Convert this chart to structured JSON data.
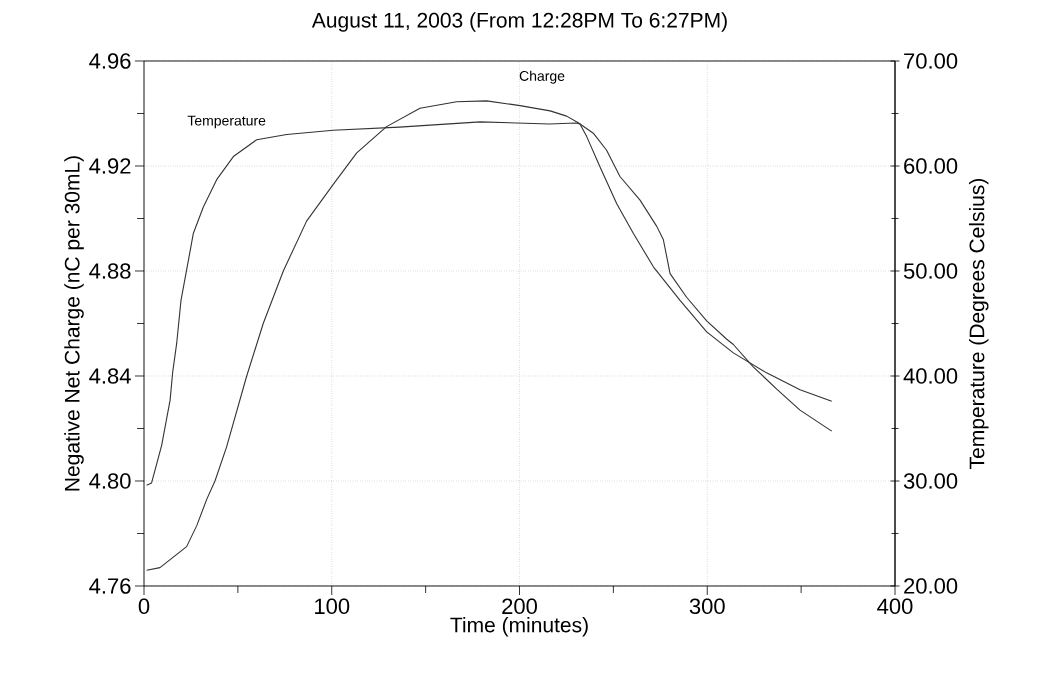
{
  "chart_data": {
    "type": "line",
    "title": "August 11, 2003 (From 12:28PM To 6:27PM)",
    "xlabel": "Time (minutes)",
    "ylabel": "Negative Net Charge (nC per 30mL)",
    "y2label": "Temperature (Degrees Celsius)",
    "xlim": [
      0,
      400
    ],
    "xticks": [
      0,
      {
        "value": 50,
        "label": null
      },
      100,
      {
        "value": 150,
        "label": null
      },
      200,
      {
        "value": 250,
        "label": null
      },
      300,
      {
        "value": 350,
        "label": null
      },
      400
    ],
    "ylim": [
      4.76,
      4.96
    ],
    "yticks": [
      {
        "value": 4.76,
        "label": "4.76"
      },
      {
        "value": 4.78,
        "label": null
      },
      {
        "value": 4.8,
        "label": "4.80"
      },
      {
        "value": 4.82,
        "label": null
      },
      {
        "value": 4.84,
        "label": "4.84"
      },
      {
        "value": 4.86,
        "label": null
      },
      {
        "value": 4.88,
        "label": "4.88"
      },
      {
        "value": 4.9,
        "label": null
      },
      {
        "value": 4.92,
        "label": "4.92"
      },
      {
        "value": 4.94,
        "label": null
      },
      {
        "value": 4.96,
        "label": "4.96"
      }
    ],
    "y2lim": [
      20,
      70
    ],
    "y2ticks": [
      {
        "value": 20,
        "label": "20.00"
      },
      {
        "value": 25,
        "label": null
      },
      {
        "value": 30,
        "label": "30.00"
      },
      {
        "value": 35,
        "label": null
      },
      {
        "value": 40,
        "label": "40.00"
      },
      {
        "value": 45,
        "label": null
      },
      {
        "value": 50,
        "label": "50.00"
      },
      {
        "value": 55,
        "label": null
      },
      {
        "value": 60,
        "label": "60.00"
      },
      {
        "value": 65,
        "label": null
      },
      {
        "value": 70,
        "label": "70.00"
      }
    ],
    "grid": true,
    "series": [
      {
        "name": "Charge",
        "color": "#333333",
        "x": [
          1.4,
          8.5,
          15.6,
          22.7,
          28.1,
          33.4,
          37.8,
          44,
          54.7,
          63.5,
          74.2,
          86.6,
          100.8,
          113.3,
          129.2,
          147,
          166.5,
          182.5,
          200.3,
          216.3,
          225.1,
          231.3,
          239.3,
          246.4,
          253.5,
          264.2,
          273.1,
          276.6,
          280.2,
          289,
          299.7,
          310.4,
          313.9,
          324.5,
          337,
          349.4,
          366.3
        ],
        "values": [
          4.766,
          4.767,
          4.771,
          4.775,
          4.783,
          4.793,
          4.8,
          4.813,
          4.84,
          4.86,
          4.88,
          4.899,
          4.913,
          4.925,
          4.935,
          4.942,
          4.9445,
          4.9448,
          4.943,
          4.941,
          4.939,
          4.9365,
          4.9325,
          4.926,
          4.916,
          4.907,
          4.897,
          4.892,
          4.879,
          4.87,
          4.861,
          4.854,
          4.852,
          4.8435,
          4.835,
          4.827,
          4.819
        ]
      },
      {
        "name": "Temperature",
        "color": "#333333",
        "axis": "y2",
        "x": [
          1.4,
          4,
          9.4,
          13.9,
          15.3,
          17.4,
          19.7,
          22.7,
          26.3,
          31.6,
          38.7,
          47.6,
          60,
          76,
          100.8,
          136,
          179,
          216,
          230,
          232.2,
          235.8,
          242.9,
          251.8,
          260.6,
          271.3,
          285.5,
          299.7,
          313.9,
          331.6,
          349.4,
          366.3
        ],
        "values": [
          29.6,
          29.8,
          33.4,
          37.7,
          40.4,
          43.1,
          47.2,
          50.1,
          53.6,
          56.1,
          58.7,
          60.9,
          62.5,
          63.0,
          63.4,
          63.7,
          64.2,
          64.0,
          64.1,
          64.0,
          62.8,
          59.9,
          56.4,
          53.6,
          50.4,
          47.2,
          44.2,
          42.2,
          40.3,
          38.7,
          37.6
        ]
      }
    ]
  }
}
